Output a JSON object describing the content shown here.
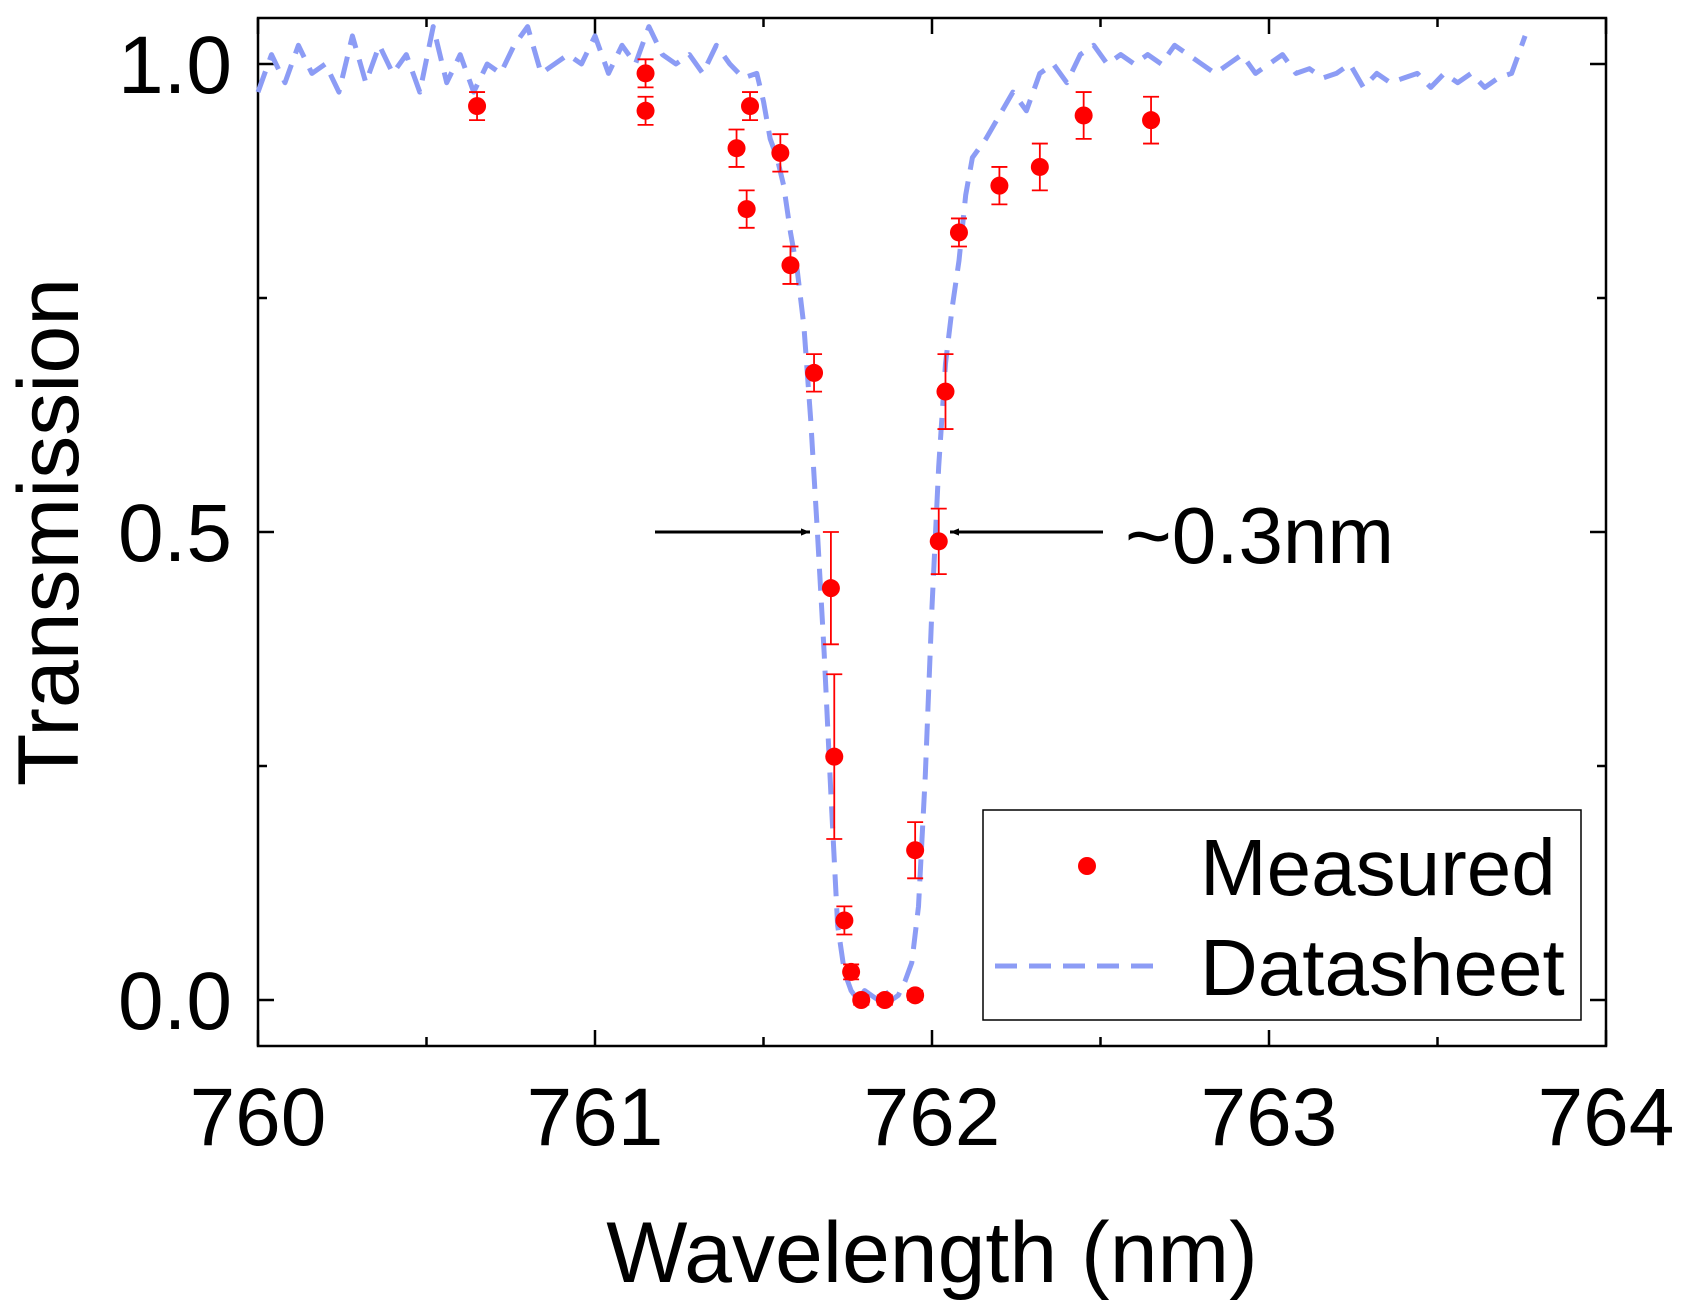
{
  "chart_data": {
    "type": "scatter",
    "title": "",
    "xlabel": "Wavelength (nm)",
    "ylabel": "Transmission",
    "xlim": [
      760,
      764
    ],
    "ylim": [
      -0.05,
      1.05
    ],
    "xticks": [
      760,
      761,
      762,
      763,
      764
    ],
    "xtick_labels": [
      "760",
      "761",
      "762",
      "763",
      "764"
    ],
    "yticks": [
      0.0,
      0.5,
      1.0
    ],
    "ytick_labels": [
      "0.0",
      "0.5",
      "1.0"
    ],
    "grid": false,
    "legend_position": "bottom-right",
    "colors": {
      "measured": "#ff0000",
      "errorbar": "#ff0000",
      "datasheet": "#8c9cf5",
      "axis": "#000000"
    },
    "series": [
      {
        "name": "Measured",
        "style": "markers",
        "x": [
          760.65,
          761.15,
          761.15,
          761.42,
          761.45,
          761.46,
          761.55,
          761.58,
          761.65,
          761.7,
          761.71,
          761.74,
          761.76,
          761.79,
          761.86,
          761.95,
          761.95,
          762.02,
          762.04,
          762.08,
          762.2,
          762.32,
          762.45,
          762.65
        ],
        "y": [
          0.955,
          0.99,
          0.95,
          0.91,
          0.845,
          0.955,
          0.905,
          0.785,
          0.67,
          0.44,
          0.26,
          0.085,
          0.03,
          0.0,
          0.0,
          0.005,
          0.16,
          0.49,
          0.65,
          0.82,
          0.87,
          0.89,
          0.945,
          0.94
        ],
        "yerr": [
          0.015,
          0.015,
          0.015,
          0.02,
          0.02,
          0.015,
          0.02,
          0.02,
          0.02,
          0.06,
          0.088,
          0.015,
          0.008,
          0.005,
          0.005,
          0.005,
          0.03,
          0.035,
          0.04,
          0.015,
          0.02,
          0.025,
          0.025,
          0.025
        ]
      },
      {
        "name": "Datasheet",
        "style": "dashed-line",
        "x": [
          760.0,
          760.04,
          760.08,
          760.12,
          760.16,
          760.2,
          760.24,
          760.28,
          760.32,
          760.36,
          760.4,
          760.44,
          760.48,
          760.52,
          760.56,
          760.6,
          760.64,
          760.68,
          760.72,
          760.76,
          760.8,
          760.84,
          760.88,
          760.92,
          760.96,
          761.0,
          761.04,
          761.08,
          761.12,
          761.16,
          761.2,
          761.24,
          761.28,
          761.32,
          761.36,
          761.4,
          761.44,
          761.48,
          761.5,
          761.52,
          761.54,
          761.56,
          761.58,
          761.6,
          761.62,
          761.64,
          761.66,
          761.68,
          761.7,
          761.72,
          761.74,
          761.76,
          761.78,
          761.8,
          761.82,
          761.84,
          761.86,
          761.88,
          761.9,
          761.92,
          761.94,
          761.96,
          761.98,
          762.0,
          762.02,
          762.04,
          762.06,
          762.08,
          762.1,
          762.12,
          762.16,
          762.2,
          762.24,
          762.28,
          762.32,
          762.36,
          762.4,
          762.44,
          762.48,
          762.52,
          762.56,
          762.6,
          762.64,
          762.68,
          762.72,
          762.76,
          762.8,
          762.84,
          762.88,
          762.92,
          762.96,
          763.0,
          763.04,
          763.08,
          763.12,
          763.16,
          763.2,
          763.24,
          763.28,
          763.32,
          763.36,
          763.4,
          763.44,
          763.48,
          763.52,
          763.56,
          763.6,
          763.64,
          763.68,
          763.72,
          763.76
        ],
        "y": [
          0.97,
          1.01,
          0.98,
          1.02,
          0.99,
          1.0,
          0.97,
          1.03,
          0.98,
          1.02,
          0.99,
          1.01,
          0.97,
          1.04,
          0.98,
          1.01,
          0.97,
          1.0,
          0.99,
          1.02,
          1.04,
          0.99,
          1.0,
          1.01,
          1.0,
          1.03,
          0.99,
          1.02,
          1.0,
          1.04,
          1.01,
          1.0,
          1.01,
          0.99,
          1.02,
          1.0,
          0.985,
          0.99,
          0.96,
          0.92,
          0.9,
          0.87,
          0.82,
          0.78,
          0.72,
          0.62,
          0.5,
          0.37,
          0.22,
          0.08,
          0.03,
          0.01,
          0.0,
          0.01,
          0.005,
          0.0,
          0.01,
          0.0,
          0.005,
          0.02,
          0.04,
          0.1,
          0.24,
          0.42,
          0.57,
          0.68,
          0.74,
          0.79,
          0.86,
          0.9,
          0.92,
          0.945,
          0.97,
          0.95,
          0.99,
          1.0,
          0.98,
          1.01,
          1.02,
          1.0,
          1.01,
          1.0,
          1.01,
          1.0,
          1.02,
          1.01,
          1.0,
          0.99,
          1.0,
          1.01,
          0.99,
          1.0,
          1.01,
          0.99,
          0.995,
          0.985,
          0.99,
          1.0,
          0.975,
          0.99,
          0.98,
          0.985,
          0.99,
          0.975,
          0.99,
          0.98,
          0.99,
          0.975,
          0.985,
          0.99,
          1.03
        ]
      }
    ],
    "annotations": [
      {
        "text": "~0.3nm",
        "type": "fwhm-arrows",
        "at_y": 0.5,
        "from_x": 761.66,
        "to_x": 762.02
      }
    ]
  }
}
